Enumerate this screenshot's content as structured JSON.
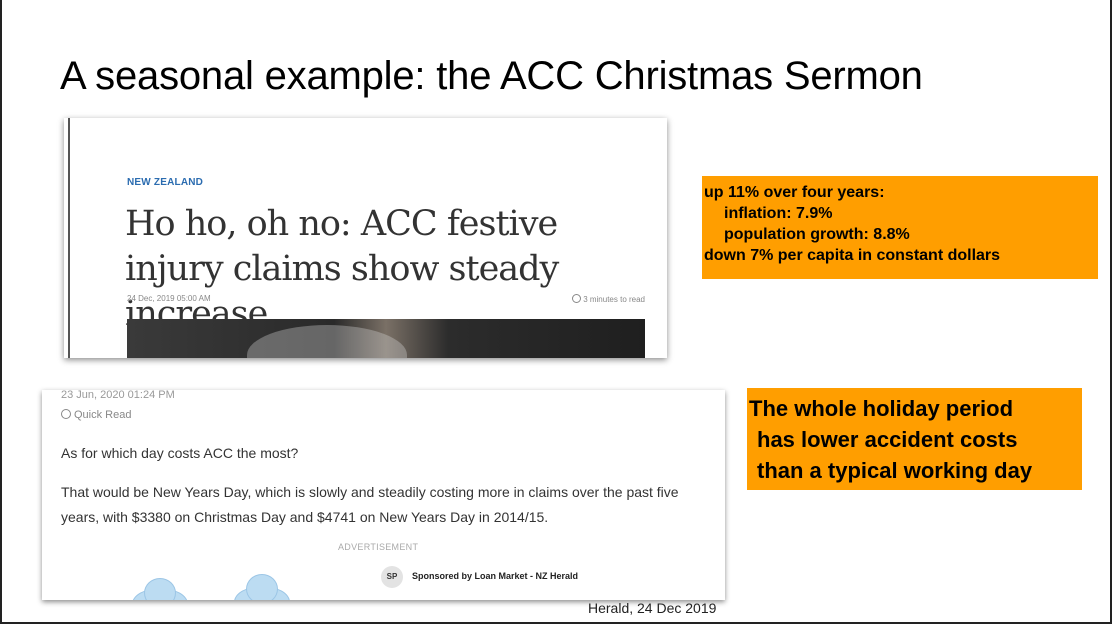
{
  "slide": {
    "title": "A seasonal example: the ACC Christmas Sermon",
    "caption": "Herald, 24 Dec 2019"
  },
  "article1": {
    "kicker": "NEW ZEALAND",
    "headline": "Ho ho, oh no: ACC festive injury claims show steady increase",
    "date": "24 Dec, 2019 05:00 AM",
    "read_time": "3 minutes to read"
  },
  "box1": {
    "line1_bold": "up 11%",
    "line1_rest": " over four years:",
    "line2": "inflation: 7.9%",
    "line3": "population growth: 8.8%",
    "line4_bold": "down",
    "line4_rest": " 7% per capita in constant dollars",
    "color": "#ff9e00"
  },
  "article2": {
    "top_date": "23 Jun, 2020 01:24 PM",
    "quick_read": "Quick Read",
    "question": "As for which day costs ACC the most?",
    "paragraph": "That would be New Years Day, which is slowly and steadily costing more in claims over the past five years, with $3380 on Christmas Day and $4741 on New Years Day in 2014/15.",
    "advertisement": "ADVERTISEMENT",
    "sponsor_initials": "SP",
    "sponsor_text": "Sponsored by Loan Market - NZ Herald"
  },
  "box2": {
    "line1": "The whole holiday period",
    "line2": "has lower accident costs",
    "line3": "than a typical working day",
    "color": "#ff9e00"
  }
}
